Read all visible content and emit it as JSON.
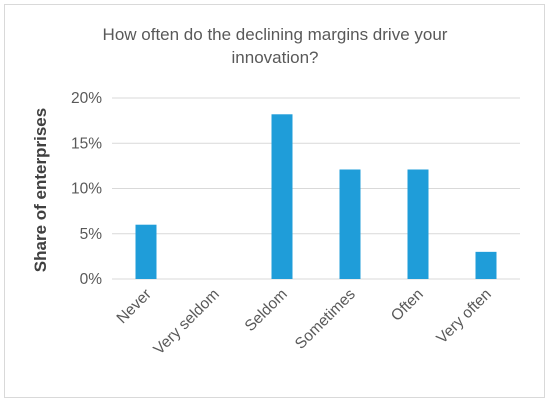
{
  "chart_data": {
    "type": "bar",
    "title_lines": [
      "How often do the declining margins drive your",
      "innovation?"
    ],
    "xlabel": "",
    "ylabel": "Share of enterprises",
    "categories": [
      "Never",
      "Very seldom",
      "Seldom",
      "Sometimes",
      "Often",
      "Very often"
    ],
    "values": [
      6,
      0,
      18.2,
      12.1,
      12.1,
      3
    ],
    "ylim": [
      0,
      20
    ],
    "yticks": [
      0,
      5,
      10,
      15,
      20
    ],
    "ytick_labels": [
      "0%",
      "5%",
      "10%",
      "15%",
      "20%"
    ],
    "grid": true,
    "legend": "none",
    "colors": {
      "bar": "#1f9dd9",
      "grid": "#d9d9d9",
      "text": "#595959"
    }
  }
}
